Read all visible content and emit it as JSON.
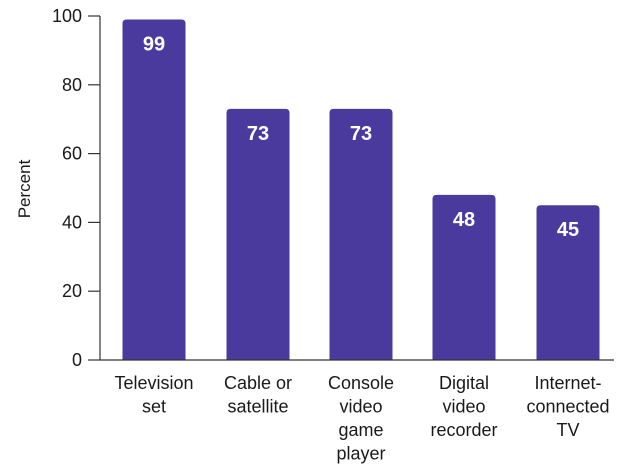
{
  "chart_data": {
    "type": "bar",
    "categories": [
      [
        "Television",
        "set"
      ],
      [
        "Cable or",
        "satellite"
      ],
      [
        "Console",
        "video",
        "game",
        "player"
      ],
      [
        "Digital",
        "video",
        "recorder"
      ],
      [
        "Internet-",
        "connected",
        "TV"
      ]
    ],
    "values": [
      99,
      73,
      73,
      48,
      45
    ],
    "data_labels": [
      "99",
      "73",
      "73",
      "48",
      "45"
    ],
    "ylabel": "Percent",
    "ylim": [
      0,
      100
    ],
    "yticks": [
      0,
      20,
      40,
      60,
      80,
      100
    ],
    "ytick_labels": [
      "0",
      "20",
      "40",
      "60",
      "80",
      "100"
    ],
    "grid": false,
    "bar_color": "#4b3a9e",
    "label_color": "#ffffff"
  }
}
